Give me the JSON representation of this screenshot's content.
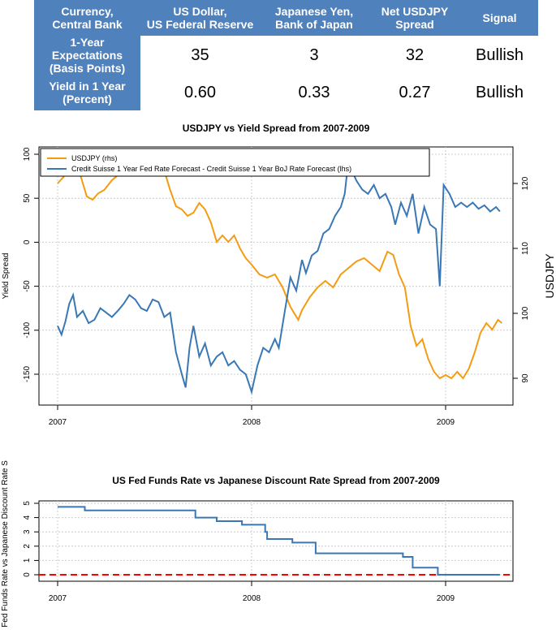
{
  "table": {
    "headers": [
      "Currency,\nCentral Bank",
      "US Dollar,\nUS Federal Reserve",
      "Japanese Yen,\nBank of Japan",
      "Net USDJPY\nSpread",
      "Signal"
    ],
    "rows": [
      {
        "label": "1-Year\nExpectations\n(Basis Points)",
        "usd": "35",
        "jpy": "3",
        "net": "32",
        "signal": "Bullish"
      },
      {
        "label": "Yield in 1 Year\n(Percent)",
        "usd": "0.60",
        "jpy": "0.33",
        "net": "0.27",
        "signal": "Bullish"
      }
    ],
    "header_color": "#4f81bd"
  },
  "chart_data": [
    {
      "type": "line",
      "title": "USDJPY vs Yield Spread from 2007-2009",
      "ylabel": "Yield Spread",
      "ylabel_right": "USDJPY",
      "x_ticks": [
        "2007",
        "2008",
        "2009"
      ],
      "x_range": [
        2007.0,
        2009.35
      ],
      "ylim": [
        -185,
        110
      ],
      "ylim_right": [
        86,
        126
      ],
      "y_ticks": [
        100,
        50,
        0,
        -50,
        -100,
        -150
      ],
      "y_ticks_right": [
        120,
        110,
        100,
        90
      ],
      "grid": true,
      "legend_position": "top-left",
      "series": [
        {
          "name": "USDJPY (rhs)",
          "axis": "right",
          "color": "#f39c12",
          "points": [
            [
              2007.0,
              120
            ],
            [
              2007.03,
              121
            ],
            [
              2007.06,
              122.5
            ],
            [
              2007.09,
              123
            ],
            [
              2007.12,
              121
            ],
            [
              2007.15,
              118
            ],
            [
              2007.18,
              117.5
            ],
            [
              2007.21,
              118.5
            ],
            [
              2007.24,
              119
            ],
            [
              2007.28,
              120.5
            ],
            [
              2007.32,
              121.5
            ],
            [
              2007.36,
              122
            ],
            [
              2007.4,
              123
            ],
            [
              2007.44,
              123.5
            ],
            [
              2007.48,
              123
            ],
            [
              2007.52,
              122
            ],
            [
              2007.55,
              122
            ],
            [
              2007.58,
              119
            ],
            [
              2007.61,
              116.5
            ],
            [
              2007.64,
              116
            ],
            [
              2007.67,
              115
            ],
            [
              2007.7,
              115.5
            ],
            [
              2007.73,
              117
            ],
            [
              2007.76,
              116
            ],
            [
              2007.79,
              114
            ],
            [
              2007.82,
              111
            ],
            [
              2007.85,
              112
            ],
            [
              2007.88,
              111
            ],
            [
              2007.91,
              112
            ],
            [
              2007.94,
              110
            ],
            [
              2007.97,
              108.5
            ],
            [
              2008.0,
              107.5
            ],
            [
              2008.04,
              106
            ],
            [
              2008.08,
              105.5
            ],
            [
              2008.12,
              106
            ],
            [
              2008.16,
              104
            ],
            [
              2008.2,
              101
            ],
            [
              2008.24,
              99
            ],
            [
              2008.26,
              100.5
            ],
            [
              2008.3,
              102.5
            ],
            [
              2008.34,
              104
            ],
            [
              2008.38,
              105
            ],
            [
              2008.42,
              104
            ],
            [
              2008.46,
              106
            ],
            [
              2008.5,
              107
            ],
            [
              2008.54,
              108
            ],
            [
              2008.58,
              108.5
            ],
            [
              2008.62,
              107.5
            ],
            [
              2008.66,
              106.5
            ],
            [
              2008.7,
              109.5
            ],
            [
              2008.73,
              109
            ],
            [
              2008.76,
              106
            ],
            [
              2008.79,
              104
            ],
            [
              2008.82,
              98
            ],
            [
              2008.85,
              95
            ],
            [
              2008.88,
              96
            ],
            [
              2008.91,
              93
            ],
            [
              2008.94,
              91
            ],
            [
              2008.97,
              90
            ],
            [
              2009.0,
              90.5
            ],
            [
              2009.03,
              90
            ],
            [
              2009.06,
              91
            ],
            [
              2009.09,
              90
            ],
            [
              2009.12,
              91.5
            ],
            [
              2009.15,
              94
            ],
            [
              2009.18,
              97
            ],
            [
              2009.21,
              98.5
            ],
            [
              2009.24,
              97.5
            ],
            [
              2009.27,
              99
            ],
            [
              2009.29,
              98.5
            ]
          ]
        },
        {
          "name": "Credit Suisse 1 Year Fed Rate Forecast - Credit Suisse 1 Year BoJ Rate Forecast (lhs)",
          "axis": "left",
          "color": "#3a78b5",
          "points": [
            [
              2007.0,
              -95
            ],
            [
              2007.02,
              -105
            ],
            [
              2007.04,
              -90
            ],
            [
              2007.06,
              -70
            ],
            [
              2007.08,
              -60
            ],
            [
              2007.1,
              -85
            ],
            [
              2007.13,
              -78
            ],
            [
              2007.16,
              -92
            ],
            [
              2007.19,
              -88
            ],
            [
              2007.22,
              -75
            ],
            [
              2007.25,
              -80
            ],
            [
              2007.28,
              -85
            ],
            [
              2007.31,
              -78
            ],
            [
              2007.34,
              -70
            ],
            [
              2007.37,
              -60
            ],
            [
              2007.4,
              -65
            ],
            [
              2007.43,
              -75
            ],
            [
              2007.46,
              -78
            ],
            [
              2007.49,
              -65
            ],
            [
              2007.52,
              -68
            ],
            [
              2007.55,
              -85
            ],
            [
              2007.58,
              -80
            ],
            [
              2007.61,
              -125
            ],
            [
              2007.64,
              -150
            ],
            [
              2007.66,
              -165
            ],
            [
              2007.68,
              -120
            ],
            [
              2007.7,
              -95
            ],
            [
              2007.73,
              -130
            ],
            [
              2007.76,
              -115
            ],
            [
              2007.79,
              -140
            ],
            [
              2007.82,
              -130
            ],
            [
              2007.85,
              -125
            ],
            [
              2007.88,
              -140
            ],
            [
              2007.91,
              -135
            ],
            [
              2007.94,
              -145
            ],
            [
              2007.97,
              -150
            ],
            [
              2008.0,
              -170
            ],
            [
              2008.03,
              -140
            ],
            [
              2008.06,
              -120
            ],
            [
              2008.09,
              -125
            ],
            [
              2008.12,
              -110
            ],
            [
              2008.14,
              -120
            ],
            [
              2008.17,
              -80
            ],
            [
              2008.2,
              -40
            ],
            [
              2008.23,
              -55
            ],
            [
              2008.26,
              -20
            ],
            [
              2008.28,
              -35
            ],
            [
              2008.31,
              -15
            ],
            [
              2008.34,
              -10
            ],
            [
              2008.37,
              10
            ],
            [
              2008.4,
              15
            ],
            [
              2008.43,
              30
            ],
            [
              2008.46,
              40
            ],
            [
              2008.48,
              55
            ],
            [
              2008.5,
              95
            ],
            [
              2008.52,
              80
            ],
            [
              2008.54,
              70
            ],
            [
              2008.57,
              60
            ],
            [
              2008.6,
              55
            ],
            [
              2008.63,
              65
            ],
            [
              2008.66,
              50
            ],
            [
              2008.69,
              55
            ],
            [
              2008.72,
              40
            ],
            [
              2008.74,
              20
            ],
            [
              2008.77,
              45
            ],
            [
              2008.8,
              30
            ],
            [
              2008.83,
              55
            ],
            [
              2008.86,
              10
            ],
            [
              2008.89,
              40
            ],
            [
              2008.92,
              20
            ],
            [
              2008.95,
              15
            ],
            [
              2008.97,
              -50
            ],
            [
              2008.99,
              65
            ],
            [
              2009.02,
              55
            ],
            [
              2009.05,
              40
            ],
            [
              2009.08,
              45
            ],
            [
              2009.11,
              40
            ],
            [
              2009.14,
              45
            ],
            [
              2009.17,
              38
            ],
            [
              2009.2,
              42
            ],
            [
              2009.23,
              35
            ],
            [
              2009.26,
              40
            ],
            [
              2009.28,
              35
            ]
          ]
        }
      ]
    },
    {
      "type": "line",
      "title": "US Fed Funds Rate vs Japanese Discount Rate Spread from 2007-2009",
      "ylabel": "Fed Funds Rate vs Japanese Discount Rate S",
      "x_ticks": [
        "2007",
        "2008",
        "2009"
      ],
      "x_range": [
        2007.0,
        2009.35
      ],
      "ylim": [
        -0.4,
        5.0
      ],
      "y_ticks": [
        5,
        4,
        3,
        2,
        1,
        0
      ],
      "grid": true,
      "reference_line": {
        "value": 0,
        "color": "#ff0000",
        "style": "dashed"
      },
      "series": [
        {
          "name": "",
          "color": "#3a78b5",
          "step": true,
          "points": [
            [
              2007.0,
              4.75
            ],
            [
              2007.14,
              4.75
            ],
            [
              2007.14,
              4.5
            ],
            [
              2007.71,
              4.5
            ],
            [
              2007.71,
              4.0
            ],
            [
              2007.82,
              4.0
            ],
            [
              2007.82,
              3.75
            ],
            [
              2007.95,
              3.75
            ],
            [
              2007.95,
              3.5
            ],
            [
              2008.07,
              3.5
            ],
            [
              2008.07,
              3.0
            ],
            [
              2008.08,
              3.0
            ],
            [
              2008.08,
              2.5
            ],
            [
              2008.21,
              2.5
            ],
            [
              2008.21,
              2.25
            ],
            [
              2008.33,
              2.25
            ],
            [
              2008.33,
              1.5
            ],
            [
              2008.78,
              1.5
            ],
            [
              2008.78,
              1.25
            ],
            [
              2008.83,
              1.25
            ],
            [
              2008.83,
              0.5
            ],
            [
              2008.96,
              0.5
            ],
            [
              2008.96,
              0.0
            ],
            [
              2009.28,
              0.0
            ]
          ]
        }
      ]
    }
  ]
}
